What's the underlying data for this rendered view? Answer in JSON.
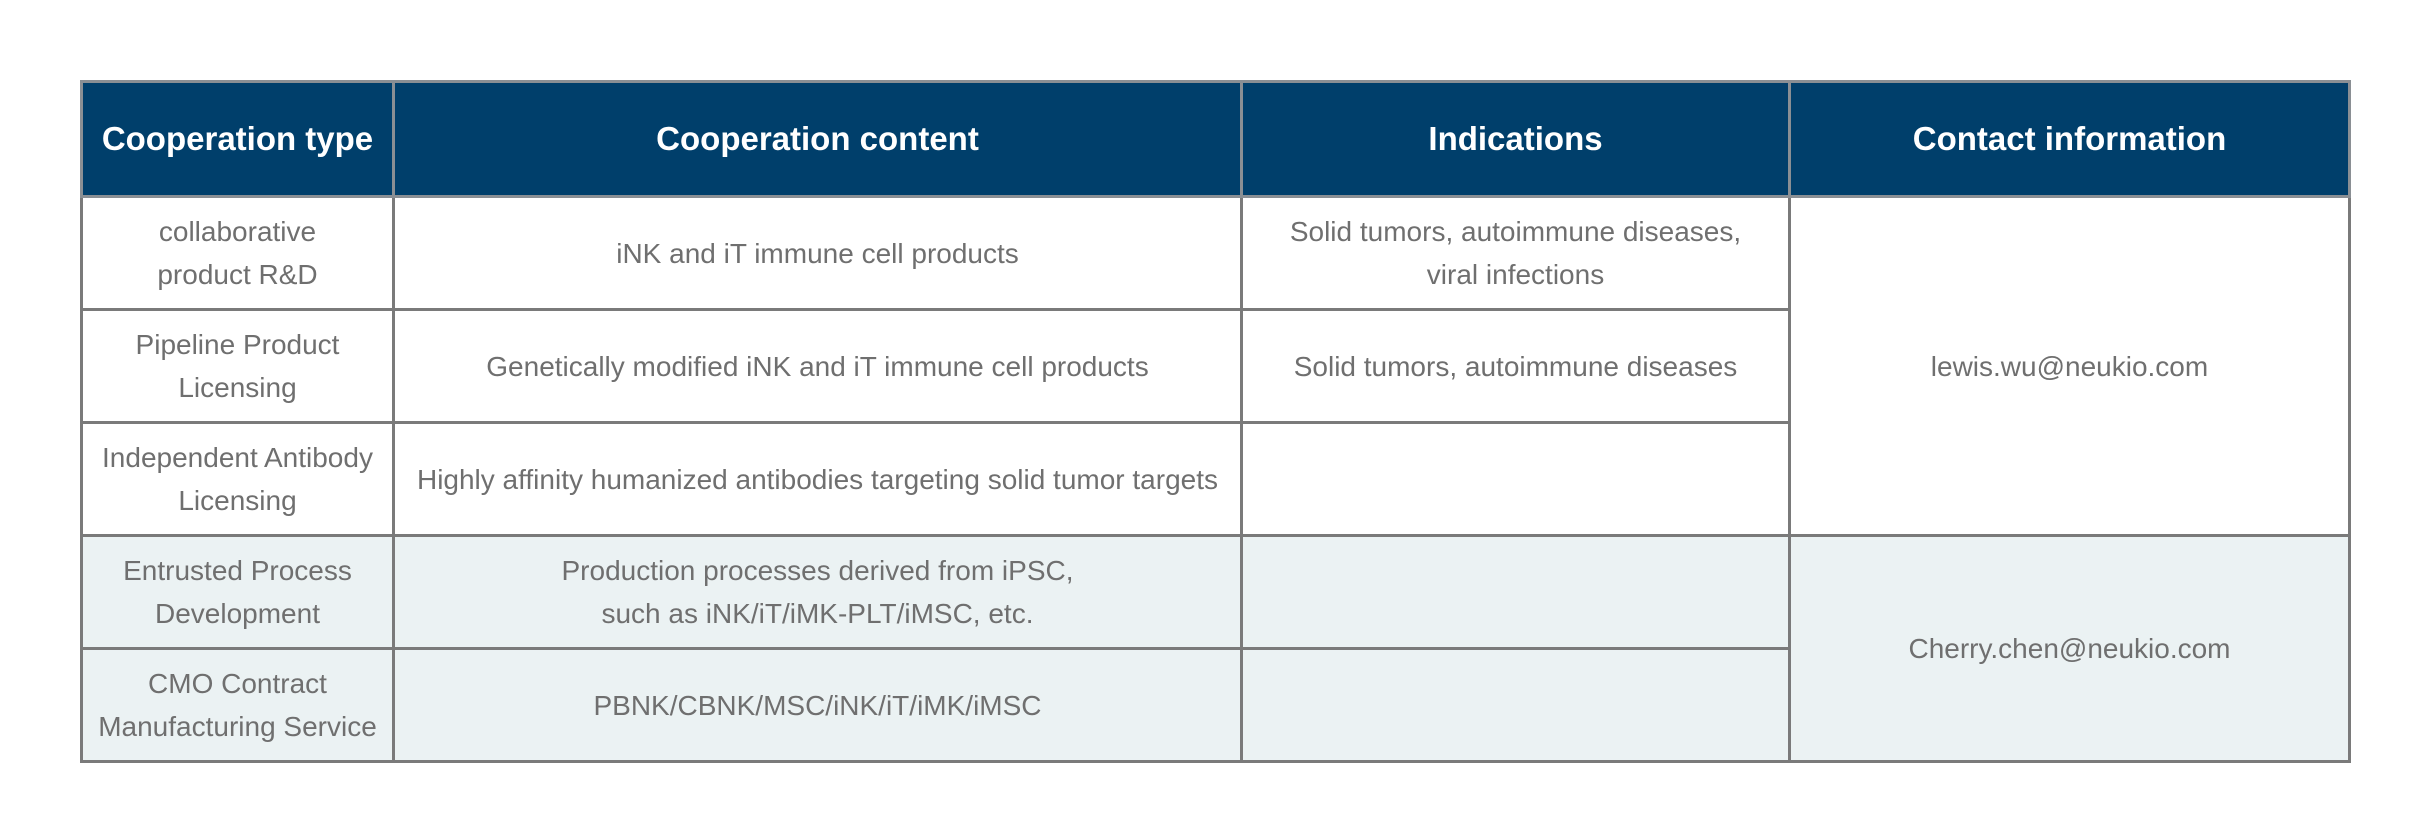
{
  "table": {
    "headers": {
      "type": "Cooperation type",
      "content": "Cooperation content",
      "indications": "Indications",
      "contact": "Contact information"
    },
    "rows": [
      {
        "type": "collaborative\nproduct R&D",
        "content": "iNK and iT immune cell products",
        "indications": "Solid tumors, autoimmune diseases,\nviral infections"
      },
      {
        "type": "Pipeline Product\nLicensing",
        "content": "Genetically modified iNK and iT immune cell products",
        "indications": "Solid tumors, autoimmune diseases"
      },
      {
        "type": "Independent Antibody\nLicensing",
        "content": "Highly affinity humanized antibodies targeting solid tumor targets",
        "indications": ""
      },
      {
        "type": "Entrusted Process\nDevelopment",
        "content": "Production processes derived from iPSC,\nsuch as iNK/iT/iMK-PLT/iMSC, etc.",
        "indications": ""
      },
      {
        "type": "CMO Contract\nManufacturing Service",
        "content": "PBNK/CBNK/MSC/iNK/iT/iMK/iMSC",
        "indications": ""
      }
    ],
    "contacts": [
      "lewis.wu@neukio.com",
      "Cherry.chen@neukio.com"
    ]
  },
  "colors": {
    "header_bg": "#003f6b",
    "header_text": "#ffffff",
    "body_text": "#6f6f6f",
    "tint_row_bg": "#ebf2f3",
    "border": "#7a7a7a"
  }
}
